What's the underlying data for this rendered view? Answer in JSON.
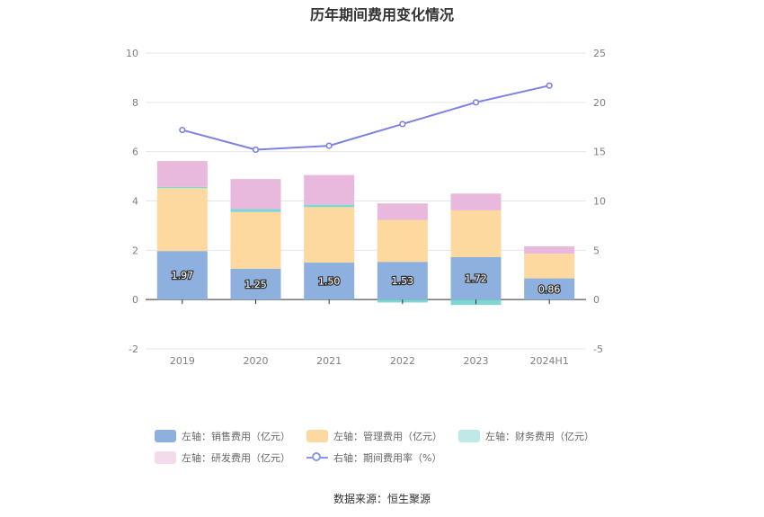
{
  "title": "历年期间费用变化情况",
  "source": "数据来源：恒生聚源",
  "colors": {
    "sales": "#8eb0de",
    "admin": "#fdd9a0",
    "finance": "#7fd6d3",
    "rd": "#e8b9dc",
    "rate": "#7b83e0",
    "grid": "#e6e6e6",
    "axis": "#333333"
  },
  "legend": [
    {
      "label": "左轴：销售费用（亿元）",
      "key": "sales",
      "kind": "bar"
    },
    {
      "label": "左轴：管理费用（亿元）",
      "key": "admin",
      "kind": "bar"
    },
    {
      "label": "左轴：财务费用（亿元）",
      "key": "finance",
      "kind": "bar"
    },
    {
      "label": "左轴：研发费用（亿元）",
      "key": "rd",
      "kind": "bar"
    },
    {
      "label": "右轴：期间费用率（%）",
      "key": "rate",
      "kind": "line"
    }
  ],
  "chart_data": {
    "type": "bar",
    "stacked": true,
    "categories": [
      "2019",
      "2020",
      "2021",
      "2022",
      "2023",
      "2024H1"
    ],
    "series": [
      {
        "name": "左轴：销售费用（亿元）",
        "key": "sales",
        "axis": "left",
        "values": [
          1.97,
          1.25,
          1.5,
          1.53,
          1.72,
          0.86
        ],
        "labels": [
          "1.97",
          "1.25",
          "1.50",
          "1.53",
          "1.72",
          "0.86"
        ]
      },
      {
        "name": "左轴：管理费用（亿元）",
        "key": "admin",
        "axis": "left",
        "values": [
          2.55,
          2.3,
          2.25,
          1.7,
          1.9,
          1.0
        ]
      },
      {
        "name": "左轴：财务费用（亿元）",
        "key": "finance",
        "axis": "left",
        "values": [
          0.05,
          0.12,
          0.1,
          -0.12,
          -0.22,
          0.0
        ]
      },
      {
        "name": "左轴：研发费用（亿元）",
        "key": "rd",
        "axis": "left",
        "values": [
          1.05,
          1.22,
          1.2,
          0.67,
          0.68,
          0.3
        ]
      },
      {
        "name": "右轴：期间费用率（%）",
        "key": "rate",
        "axis": "right",
        "type": "line",
        "values": [
          17.2,
          15.2,
          15.6,
          17.8,
          20.0,
          21.7
        ]
      }
    ],
    "left_axis": {
      "min": -2,
      "max": 10,
      "ticks": [
        -2,
        0,
        2,
        4,
        6,
        8,
        10
      ]
    },
    "right_axis": {
      "min": -5,
      "max": 25,
      "ticks": [
        -5,
        0,
        5,
        10,
        15,
        20,
        25
      ]
    },
    "grid": true,
    "legend_position": "bottom"
  }
}
